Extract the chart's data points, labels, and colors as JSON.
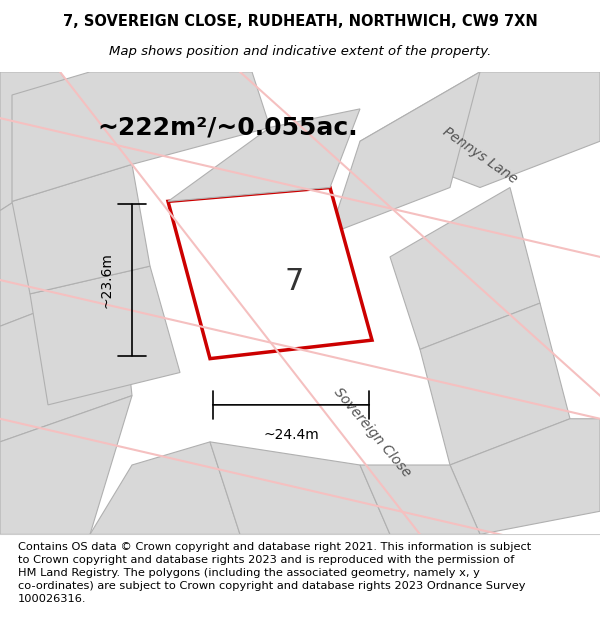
{
  "title_line1": "7, SOVEREIGN CLOSE, RUDHEATH, NORTHWICH, CW9 7XN",
  "title_line2": "Map shows position and indicative extent of the property.",
  "area_text": "~222m²/~0.055ac.",
  "plot_number": "7",
  "dim_width": "~24.4m",
  "dim_height": "~23.6m",
  "road_label_1": "Pennys Lane",
  "road_label_2": "Sovereign Close",
  "footer_text": "Contains OS data © Crown copyright and database right 2021. This information is subject to Crown copyright and database rights 2023 and is reproduced with the permission of HM Land Registry. The polygons (including the associated geometry, namely x, y co-ordinates) are subject to Crown copyright and database rights 2023 Ordnance Survey 100026316.",
  "bg_color": "#e8e8e8",
  "map_bg": "#f0f0f0",
  "plot_fill": "#e8e8e8",
  "plot_edge": "#cc0000",
  "neighbor_fill": "#d8d8d8",
  "neighbor_edge": "#b0b0b0",
  "road_line_color": "#f5c0c0",
  "text_color": "#555555",
  "footer_bg": "#ffffff",
  "title_fontsize": 10.5,
  "subtitle_fontsize": 9.5,
  "area_fontsize": 18,
  "dim_fontsize": 10,
  "plot_num_fontsize": 22,
  "road_label_fontsize": 10,
  "footer_fontsize": 8.5
}
